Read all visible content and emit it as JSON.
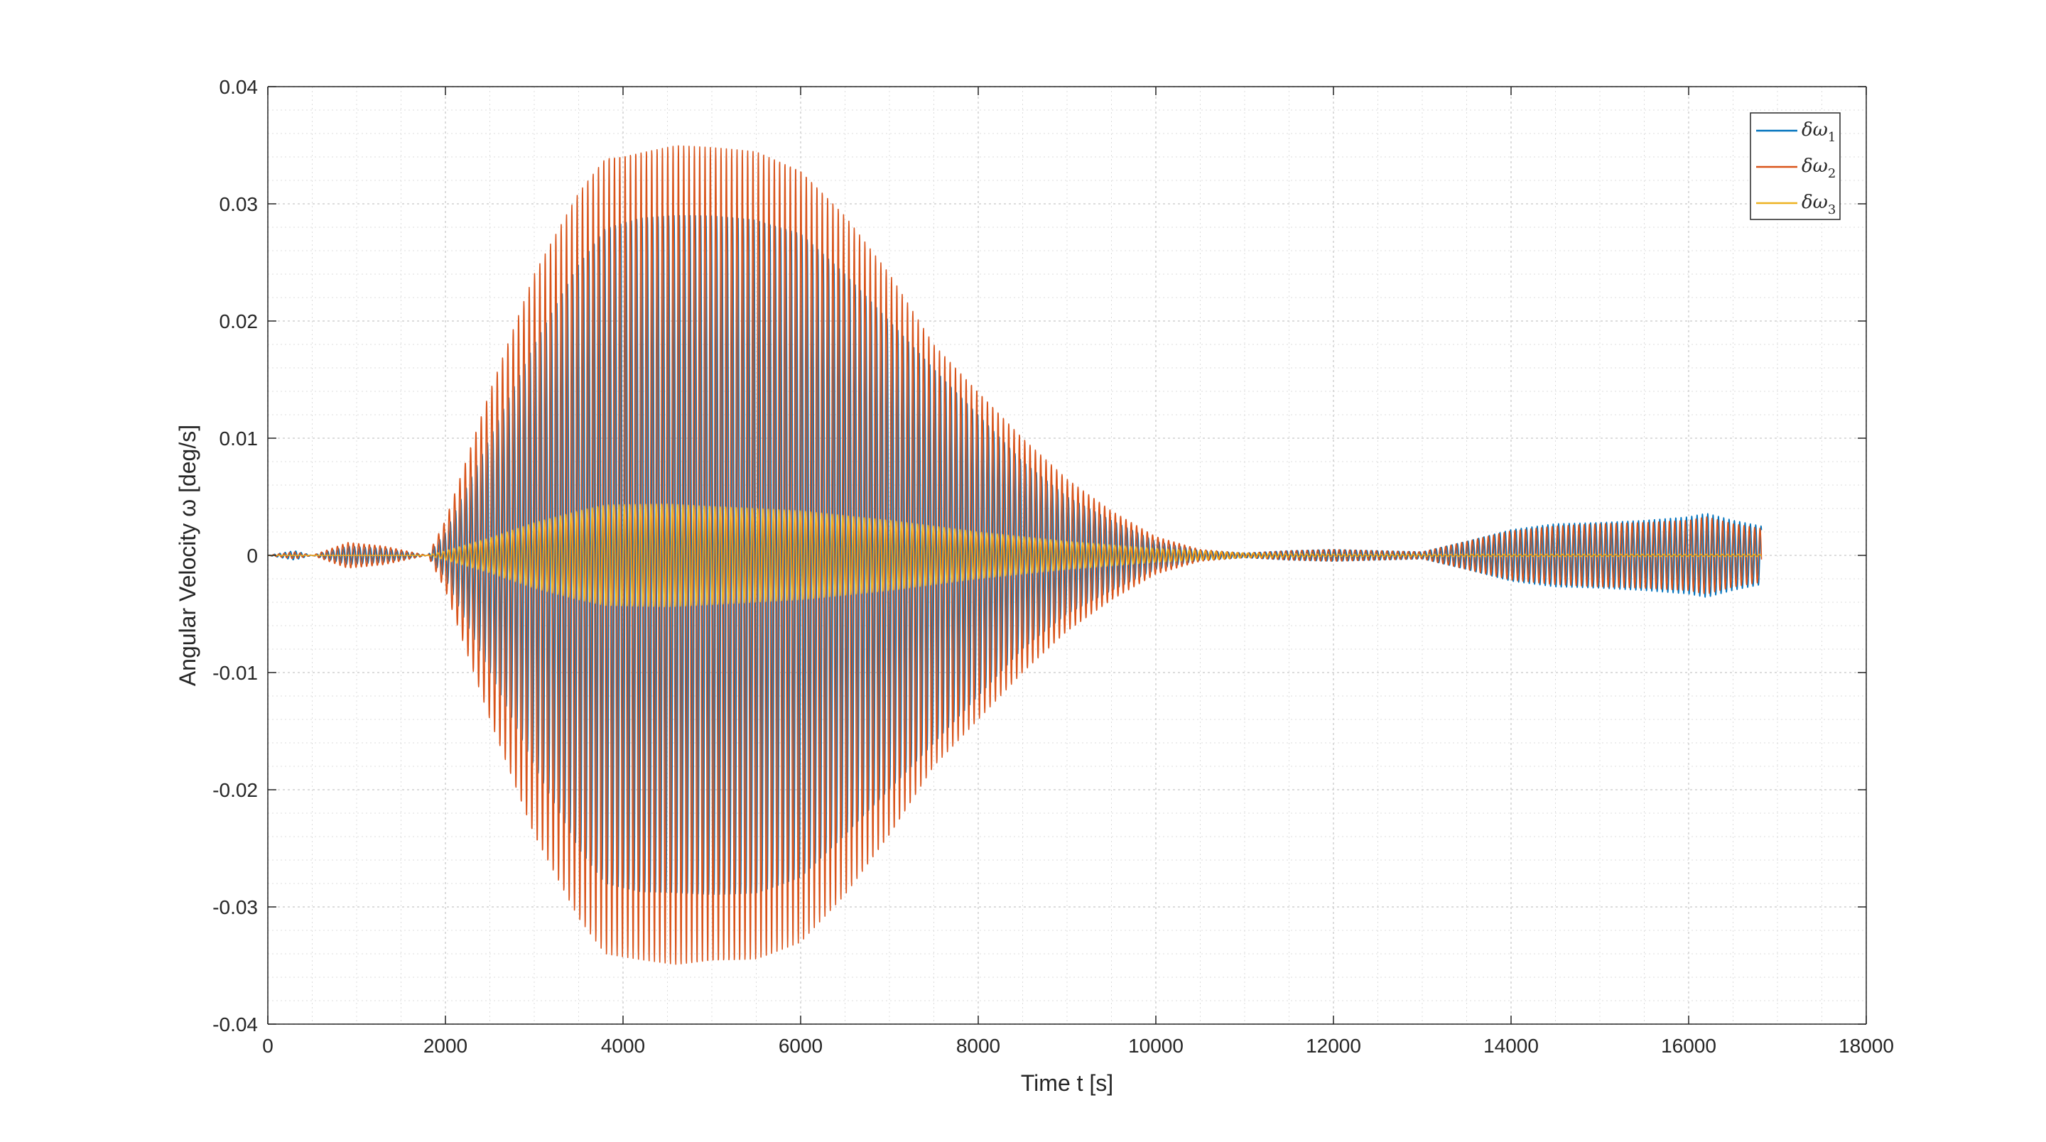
{
  "chart_data": {
    "type": "line",
    "title": "",
    "xlabel": "Time t [s]",
    "ylabel": "Angular Velocity ω [deg/s]",
    "xlim": [
      0,
      18000
    ],
    "ylim": [
      -0.04,
      0.04
    ],
    "xticks": [
      0,
      2000,
      4000,
      6000,
      8000,
      10000,
      12000,
      14000,
      16000,
      18000
    ],
    "xtick_labels": [
      "0",
      "2000",
      "4000",
      "6000",
      "8000",
      "10000",
      "12000",
      "14000",
      "16000",
      "18000"
    ],
    "yticks": [
      -0.04,
      -0.03,
      -0.02,
      -0.01,
      0,
      0.01,
      0.02,
      0.03,
      0.04
    ],
    "ytick_labels": [
      "-0.04",
      "-0.03",
      "-0.02",
      "-0.01",
      "0",
      "0.01",
      "0.02",
      "0.03",
      "0.04"
    ],
    "grid": true,
    "minor_grid": true,
    "legend_position": "top-right",
    "oscillation_period_s": 60,
    "series": [
      {
        "name": "δω",
        "subscript": "1",
        "color": "#0072BD",
        "phase": 0.0,
        "envelope_t": [
          0,
          300,
          500,
          900,
          1300,
          1800,
          2000,
          2500,
          3000,
          3500,
          3800,
          4200,
          4600,
          5000,
          5500,
          6000,
          6500,
          7000,
          7500,
          8000,
          8500,
          9000,
          9500,
          10000,
          10500,
          11000,
          11500,
          12000,
          12500,
          13000,
          13500,
          14000,
          14500,
          15000,
          15500,
          16000,
          16200,
          16500,
          16820
        ],
        "envelope": [
          0,
          0.0004,
          0,
          0.0008,
          0.0006,
          0,
          0.002,
          0.01,
          0.018,
          0.025,
          0.028,
          0.0288,
          0.029,
          0.029,
          0.0288,
          0.0275,
          0.024,
          0.02,
          0.016,
          0.012,
          0.008,
          0.005,
          0.003,
          0.0012,
          0.0004,
          0.0002,
          0.0004,
          0.0005,
          0.0004,
          0.0003,
          0.0012,
          0.0022,
          0.0027,
          0.0028,
          0.003,
          0.0033,
          0.0036,
          0.003,
          0.0025
        ]
      },
      {
        "name": "δω",
        "subscript": "2",
        "color": "#D95319",
        "phase": 1.2,
        "envelope_t": [
          0,
          300,
          500,
          900,
          1300,
          1800,
          2000,
          2500,
          3000,
          3500,
          3800,
          4200,
          4600,
          5000,
          5500,
          6000,
          6500,
          7000,
          7500,
          8000,
          8500,
          9000,
          9500,
          10000,
          10500,
          11000,
          11500,
          12000,
          12500,
          13000,
          13500,
          14000,
          14500,
          15000,
          15500,
          16000,
          16200,
          16500,
          16820
        ],
        "envelope": [
          0,
          0.0003,
          0,
          0.0011,
          0.0008,
          0,
          0.003,
          0.014,
          0.024,
          0.031,
          0.034,
          0.0345,
          0.035,
          0.0348,
          0.0345,
          0.033,
          0.029,
          0.024,
          0.018,
          0.014,
          0.01,
          0.0065,
          0.0038,
          0.0016,
          0.0005,
          0.0002,
          0.0004,
          0.0005,
          0.0004,
          0.0003,
          0.0012,
          0.0021,
          0.0025,
          0.0027,
          0.0028,
          0.003,
          0.0033,
          0.0027,
          0.0023
        ]
      },
      {
        "name": "δω",
        "subscript": "3",
        "color": "#EDB120",
        "phase": 2.1,
        "envelope_t": [
          0,
          1800,
          2000,
          2500,
          3000,
          3500,
          3800,
          4500,
          5000,
          5500,
          6000,
          6500,
          7000,
          7500,
          8000,
          9000,
          10000,
          11000,
          12000,
          13000,
          14000,
          15000,
          16000,
          16820
        ],
        "envelope": [
          0,
          0,
          0.0004,
          0.0015,
          0.0028,
          0.0038,
          0.0043,
          0.0044,
          0.0042,
          0.004,
          0.0038,
          0.0034,
          0.003,
          0.0025,
          0.002,
          0.0012,
          0.0006,
          0.0002,
          0.0001,
          0.0001,
          0.0001,
          0.0001,
          0.0001,
          0.0001
        ]
      }
    ]
  }
}
